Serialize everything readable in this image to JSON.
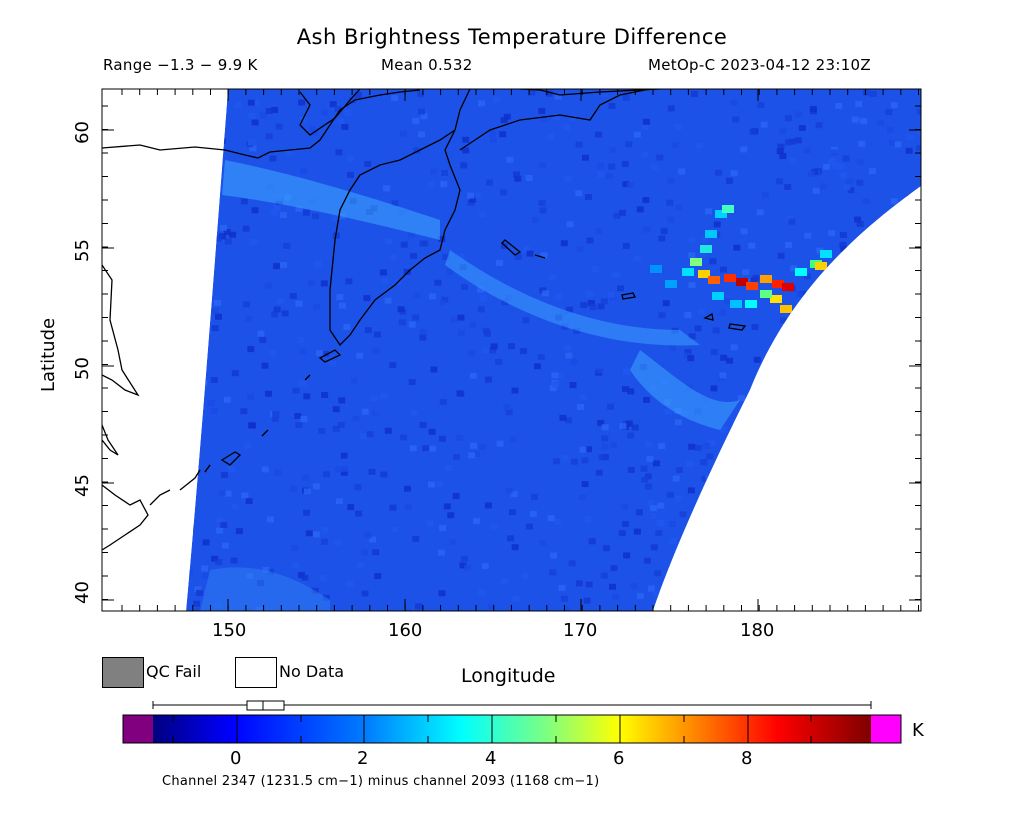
{
  "header": {
    "title": "Ash Brightness Temperature Difference",
    "range": "Range −1.3 − 9.9 K",
    "mean": "Mean 0.532",
    "satellite_time": "MetOp-C 2023-04-12 23:10Z"
  },
  "axes": {
    "ylabel": "Latitude",
    "xlabel": "Longitude",
    "y_ticks": [
      "60",
      "55",
      "50",
      "45",
      "40"
    ],
    "x_ticks": [
      "150",
      "160",
      "170",
      "180"
    ],
    "xlim": [
      143,
      189
    ],
    "ylim": [
      39.4,
      61.8
    ]
  },
  "legend": {
    "qc_fail": "QC Fail",
    "no_data": "No Data",
    "qc_fail_color": "#808080",
    "no_data_color": "#ffffff"
  },
  "colorbar": {
    "unit": "K",
    "ticks": [
      "0",
      "2",
      "4",
      "6",
      "8"
    ],
    "below_color": "#800080",
    "above_color": "#ff00ff",
    "colormap": [
      "#00007f",
      "#0000ff",
      "#007fff",
      "#00ffff",
      "#7fff7f",
      "#ffff00",
      "#ff7f00",
      "#ff0000",
      "#7f0000"
    ]
  },
  "footer": "Channel 2347 (1231.5 cm−1) minus channel 2093 (1168 cm−1)",
  "chart_data": {
    "type": "heatmap",
    "title": "Ash Brightness Temperature Difference",
    "xlabel": "Longitude",
    "ylabel": "Latitude",
    "xlim": [
      143,
      189
    ],
    "ylim": [
      39.4,
      61.8
    ],
    "colorbar_range": [
      -1.3,
      9.9
    ],
    "ash_plume_max_K": 9.9
  }
}
